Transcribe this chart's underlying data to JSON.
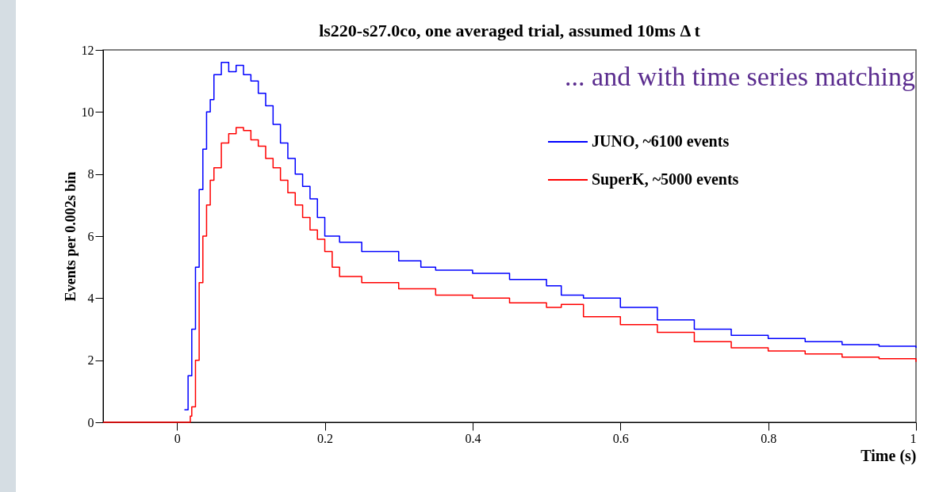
{
  "chart_data": {
    "type": "step",
    "title": "ls220-s27.0co, one averaged trial, assumed 10ms  Δ t",
    "xlabel": "Time (s)",
    "ylabel": "Events per 0.002s bin",
    "annotations": [
      "... and with time series matching"
    ],
    "xlim": [
      -0.1,
      1
    ],
    "ylim": [
      0,
      12
    ],
    "xticks": [
      0,
      0.2,
      0.4,
      0.6,
      0.8,
      1
    ],
    "yticks": [
      0,
      2,
      4,
      6,
      8,
      10,
      12
    ],
    "legend": "top right",
    "grid": false,
    "series": [
      {
        "name": "JUNO, ~6100 events",
        "color": "#0000ff",
        "x": [
          0.01,
          0.015,
          0.02,
          0.025,
          0.03,
          0.035,
          0.04,
          0.045,
          0.05,
          0.06,
          0.07,
          0.08,
          0.09,
          0.1,
          0.11,
          0.12,
          0.13,
          0.14,
          0.15,
          0.16,
          0.17,
          0.18,
          0.19,
          0.2,
          0.22,
          0.25,
          0.3,
          0.33,
          0.35,
          0.4,
          0.45,
          0.5,
          0.52,
          0.55,
          0.6,
          0.65,
          0.7,
          0.75,
          0.8,
          0.85,
          0.9,
          0.95,
          1.0
        ],
        "values": [
          0.4,
          1.5,
          3,
          5,
          7.5,
          8.8,
          10,
          10.4,
          11.2,
          11.6,
          11.3,
          11.5,
          11.2,
          11.0,
          10.6,
          10.2,
          9.6,
          9.0,
          8.5,
          8.0,
          7.6,
          7.2,
          6.6,
          6.0,
          5.8,
          5.5,
          5.2,
          5.0,
          4.9,
          4.8,
          4.6,
          4.4,
          4.1,
          4.0,
          3.7,
          3.3,
          3.0,
          2.8,
          2.7,
          2.6,
          2.5,
          2.45,
          2.4
        ]
      },
      {
        "name": "SuperK, ~5000 events",
        "color": "#ff0000",
        "x": [
          -0.1,
          0.018,
          0.02,
          0.025,
          0.03,
          0.035,
          0.04,
          0.045,
          0.05,
          0.06,
          0.07,
          0.08,
          0.09,
          0.1,
          0.11,
          0.12,
          0.13,
          0.14,
          0.15,
          0.16,
          0.17,
          0.18,
          0.19,
          0.2,
          0.21,
          0.22,
          0.25,
          0.3,
          0.35,
          0.4,
          0.45,
          0.5,
          0.52,
          0.55,
          0.6,
          0.65,
          0.7,
          0.75,
          0.8,
          0.85,
          0.9,
          0.95,
          1.0
        ],
        "values": [
          0,
          0.2,
          0.5,
          2,
          4.5,
          6,
          7,
          7.8,
          8.2,
          9.0,
          9.3,
          9.5,
          9.4,
          9.1,
          8.9,
          8.5,
          8.2,
          7.8,
          7.4,
          7.0,
          6.6,
          6.2,
          5.9,
          5.5,
          5.0,
          4.7,
          4.5,
          4.3,
          4.1,
          4.0,
          3.85,
          3.7,
          3.8,
          3.4,
          3.15,
          2.9,
          2.6,
          2.4,
          2.3,
          2.2,
          2.1,
          2.05,
          1.95
        ]
      }
    ]
  }
}
